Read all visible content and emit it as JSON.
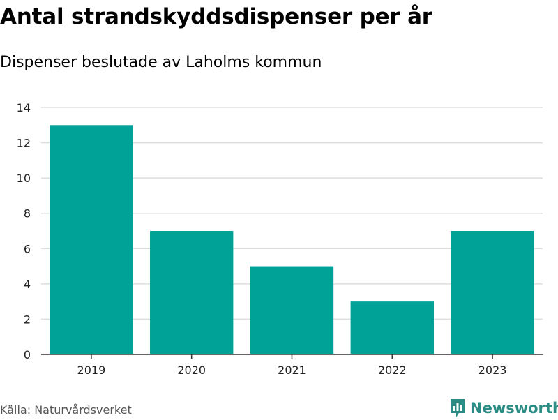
{
  "header": {
    "title": "Antal strandskyddsdispenser per år",
    "subtitle": "Dispenser beslutade av Laholms kommun"
  },
  "footer": {
    "source": "Källa: Naturvårdsverket",
    "brand": "Newsworthy",
    "brand_icon": "bar-chart-logo-icon"
  },
  "colors": {
    "bar": "#00a197",
    "grid": "#dddddd",
    "axis": "#333333",
    "brand": "#2a8c84"
  },
  "chart_data": {
    "type": "bar",
    "title": "Antal strandskyddsdispenser per år",
    "subtitle": "Dispenser beslutade av Laholms kommun",
    "categories": [
      "2019",
      "2020",
      "2021",
      "2022",
      "2023"
    ],
    "values": [
      13,
      7,
      5,
      3,
      7
    ],
    "xlabel": "",
    "ylabel": "",
    "ylim": [
      0,
      14
    ],
    "yticks": [
      0,
      2,
      4,
      6,
      8,
      10,
      12,
      14
    ],
    "grid": true,
    "legend": "none"
  }
}
